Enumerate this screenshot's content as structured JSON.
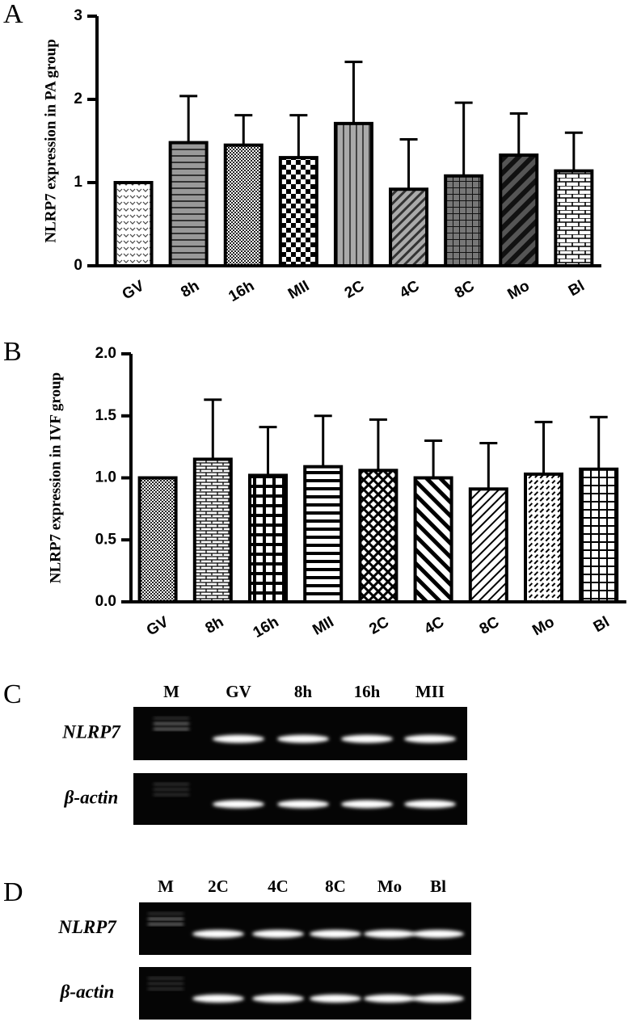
{
  "chart_data": [
    {
      "type": "bar",
      "panel_label": "A",
      "ylabel": "NLRP7 expression in PA group",
      "color": "#000000",
      "categories": [
        "GV",
        "8h",
        "16h",
        "MII",
        "2C",
        "4C",
        "8C",
        "Mo",
        "Bl"
      ],
      "values": [
        1.0,
        1.48,
        1.45,
        1.3,
        1.71,
        0.92,
        1.08,
        1.33,
        1.14
      ],
      "errors": [
        0,
        0.56,
        0.36,
        0.51,
        0.74,
        0.6,
        0.88,
        0.5,
        0.46
      ],
      "ylim": [
        0,
        3
      ],
      "yticks": [
        0,
        1,
        2,
        3
      ]
    },
    {
      "type": "bar",
      "panel_label": "B",
      "ylabel": "NLRP7 expression in IVF group",
      "color": "#000000",
      "categories": [
        "GV",
        "8h",
        "16h",
        "MII",
        "2C",
        "4C",
        "8C",
        "Mo",
        "Bl"
      ],
      "values": [
        1.0,
        1.15,
        1.02,
        1.09,
        1.06,
        1.0,
        0.91,
        1.03,
        1.07
      ],
      "errors": [
        0,
        0.48,
        0.39,
        0.41,
        0.41,
        0.3,
        0.37,
        0.42,
        0.42
      ],
      "ylim": [
        0,
        2
      ],
      "yticks": [
        {
          "value": 0,
          "label": "0.0"
        },
        {
          "value": 0.5,
          "label": "0.5"
        },
        {
          "value": 1,
          "label": "1.0"
        },
        {
          "value": 1.5,
          "label": "1.5"
        },
        {
          "value": 2,
          "label": "2.0"
        }
      ]
    }
  ],
  "gels": [
    {
      "panel_label": "C",
      "lanes": [
        "M",
        "GV",
        "8h",
        "16h",
        "MII"
      ],
      "rows": [
        "NLRP7",
        "β-actin"
      ]
    },
    {
      "panel_label": "D",
      "lanes": [
        "M",
        "2C",
        "4C",
        "8C",
        "Mo",
        "Bl"
      ],
      "rows": [
        "NLRP7",
        "β-actin"
      ]
    }
  ]
}
